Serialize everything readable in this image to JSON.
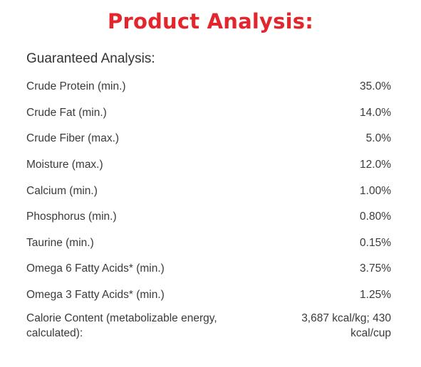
{
  "title": "Product Analysis:",
  "section_heading": "Guaranteed Analysis:",
  "rows": [
    {
      "label": "Crude Protein (min.)",
      "value": "35.0%"
    },
    {
      "label": "Crude Fat (min.)",
      "value": "14.0%"
    },
    {
      "label": "Crude Fiber (max.)",
      "value": "5.0%"
    },
    {
      "label": "Moisture (max.)",
      "value": "12.0%"
    },
    {
      "label": "Calcium (min.)",
      "value": "1.00%"
    },
    {
      "label": "Phosphorus (min.)",
      "value": "0.80%"
    },
    {
      "label": "Taurine (min.)",
      "value": "0.15%"
    },
    {
      "label": "Omega 6 Fatty Acids* (min.)",
      "value": "3.75%"
    },
    {
      "label": "Omega 3 Fatty Acids* (min.)",
      "value": "1.25%"
    },
    {
      "label": "Calorie Content (metabolizable energy, calculated):",
      "value": "3,687 kcal/kg; 430 kcal/cup"
    }
  ],
  "colors": {
    "title": "#e3262c",
    "text": "#3a3a3a",
    "background": "#ffffff"
  }
}
